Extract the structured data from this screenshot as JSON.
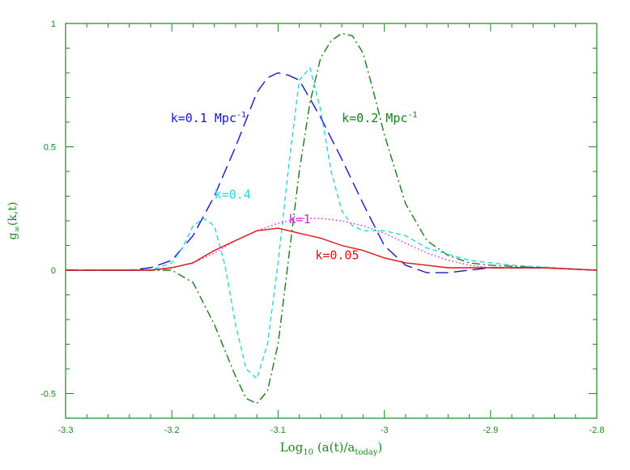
{
  "chart_data": {
    "type": "line",
    "title": "",
    "xlabel": {
      "base": "Log",
      "sub1": "10",
      "mid": " (a(t)/a",
      "sub2": "today",
      "end": ")"
    },
    "ylabel": {
      "base": "g",
      "sub": "∞",
      "end": "(k,t)"
    },
    "xlim": [
      -3.3,
      -2.8
    ],
    "ylim": [
      -0.6,
      1.0
    ],
    "x_ticks": [
      -3.3,
      -3.2,
      -3.1,
      -3.0,
      -2.9,
      -2.8
    ],
    "x_tick_labels": [
      "-3.3",
      "-3.2",
      "-3.1",
      "-3",
      "-2.9",
      "-2.8"
    ],
    "y_ticks": [
      -0.5,
      0,
      0.5,
      1
    ],
    "y_tick_labels": [
      "-0.5",
      "0",
      "0.5",
      "1"
    ],
    "grid": false,
    "axis_color": "#1a8a1a",
    "series": [
      {
        "name": "k=0.1 Mpc⁻¹",
        "color": "#1515c8",
        "dash": "long-dash",
        "x": [
          -3.3,
          -3.24,
          -3.22,
          -3.2,
          -3.18,
          -3.16,
          -3.14,
          -3.12,
          -3.11,
          -3.1,
          -3.09,
          -3.08,
          -3.06,
          -3.04,
          -3.02,
          -3.0,
          -2.98,
          -2.96,
          -2.94,
          -2.92,
          -2.9,
          -2.85,
          -2.8
        ],
        "y": [
          0.0,
          0.0,
          0.01,
          0.04,
          0.14,
          0.3,
          0.5,
          0.72,
          0.78,
          0.8,
          0.79,
          0.77,
          0.62,
          0.45,
          0.27,
          0.1,
          0.02,
          -0.01,
          -0.01,
          0.0,
          0.01,
          0.01,
          0.0
        ]
      },
      {
        "name": "k=0.2 Mpc⁻¹",
        "color": "#1a7a1a",
        "dash": "dash-dot",
        "x": [
          -3.3,
          -3.22,
          -3.2,
          -3.18,
          -3.16,
          -3.14,
          -3.13,
          -3.12,
          -3.11,
          -3.1,
          -3.09,
          -3.08,
          -3.07,
          -3.06,
          -3.05,
          -3.04,
          -3.03,
          -3.02,
          -3.01,
          -3.0,
          -2.98,
          -2.96,
          -2.94,
          -2.92,
          -2.9,
          -2.85,
          -2.8
        ],
        "y": [
          0.0,
          0.0,
          0.0,
          -0.05,
          -0.22,
          -0.43,
          -0.52,
          -0.54,
          -0.49,
          -0.3,
          0.05,
          0.4,
          0.68,
          0.86,
          0.93,
          0.96,
          0.95,
          0.88,
          0.72,
          0.55,
          0.27,
          0.12,
          0.06,
          0.03,
          0.02,
          0.01,
          0.0
        ]
      },
      {
        "name": "k=0.4",
        "color": "#2ad4e0",
        "dash": "short-dash",
        "x": [
          -3.3,
          -3.22,
          -3.2,
          -3.19,
          -3.18,
          -3.17,
          -3.16,
          -3.15,
          -3.14,
          -3.13,
          -3.12,
          -3.11,
          -3.1,
          -3.09,
          -3.08,
          -3.07,
          -3.06,
          -3.05,
          -3.04,
          -3.03,
          -3.02,
          -3.01,
          -3.0,
          -2.98,
          -2.96,
          -2.92,
          -2.88,
          -2.84,
          -2.8
        ],
        "y": [
          0.0,
          0.0,
          0.03,
          0.09,
          0.18,
          0.21,
          0.18,
          0.02,
          -0.22,
          -0.4,
          -0.44,
          -0.3,
          0.03,
          0.42,
          0.77,
          0.82,
          0.65,
          0.4,
          0.24,
          0.18,
          0.16,
          0.16,
          0.16,
          0.14,
          0.09,
          0.04,
          0.02,
          0.01,
          0.0
        ]
      },
      {
        "name": "k=1",
        "color": "#e020e0",
        "dash": "dotted",
        "x": [
          -3.3,
          -3.22,
          -3.2,
          -3.18,
          -3.16,
          -3.14,
          -3.12,
          -3.1,
          -3.08,
          -3.06,
          -3.04,
          -3.02,
          -3.0,
          -2.98,
          -2.96,
          -2.94,
          -2.92,
          -2.9,
          -2.85,
          -2.8
        ],
        "y": [
          0.0,
          0.0,
          0.01,
          0.03,
          0.07,
          0.12,
          0.16,
          0.19,
          0.21,
          0.21,
          0.2,
          0.18,
          0.15,
          0.11,
          0.07,
          0.04,
          0.02,
          0.01,
          0.01,
          0.0
        ]
      },
      {
        "name": "k=0.05",
        "color": "#e01010",
        "dash": "solid",
        "x": [
          -3.3,
          -3.22,
          -3.2,
          -3.18,
          -3.16,
          -3.14,
          -3.12,
          -3.1,
          -3.08,
          -3.06,
          -3.04,
          -3.02,
          -3.0,
          -2.98,
          -2.96,
          -2.94,
          -2.92,
          -2.9,
          -2.85,
          -2.8
        ],
        "y": [
          0.0,
          0.0,
          0.01,
          0.03,
          0.08,
          0.12,
          0.16,
          0.17,
          0.15,
          0.13,
          0.1,
          0.08,
          0.05,
          0.03,
          0.02,
          0.01,
          0.01,
          0.01,
          0.01,
          0.0
        ]
      }
    ],
    "labels": [
      {
        "text": "k=0.1 Mpc",
        "sup": "-1",
        "color": "#1515c8",
        "x": -3.13,
        "y": 0.6,
        "anchor": "end"
      },
      {
        "text": "k=0.2 Mpc",
        "sup": "-1",
        "color": "#1a7a1a",
        "x": -3.04,
        "y": 0.6,
        "anchor": "start"
      },
      {
        "text": "k=0.4",
        "sup": "",
        "color": "#2ad4e0",
        "x": -3.16,
        "y": 0.29,
        "anchor": "start"
      },
      {
        "text": "k=1",
        "sup": "",
        "color": "#e020e0",
        "x": -3.09,
        "y": 0.19,
        "anchor": "start"
      },
      {
        "text": "k=0.05",
        "sup": "",
        "color": "#e01010",
        "x": -3.065,
        "y": 0.045,
        "anchor": "start"
      }
    ]
  }
}
